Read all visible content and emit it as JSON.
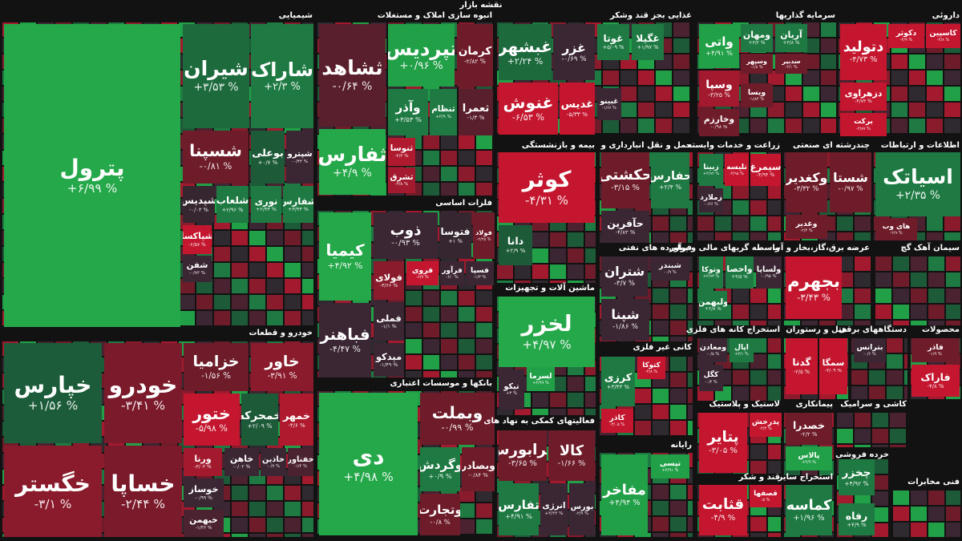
{
  "title": "نقشه بازار",
  "sectors": [
    {
      "name": "شیمیایی",
      "tiles": [
        {
          "name": "پترول",
          "change": "+۶/۹۹ %",
          "color": "#25a84a"
        },
        {
          "name": "شیران",
          "change": "+۳/۵۳ %",
          "color": "#1d6a3d"
        },
        {
          "name": "شاراک",
          "change": "+۲/۳ %",
          "color": "#1e7a42"
        },
        {
          "name": "شسپنا",
          "change": "-۰/۸۱ %",
          "color": "#6e1c2a"
        },
        {
          "name": "بوعلی",
          "change": "+۰/۷ %",
          "color": "#1d5a38"
        },
        {
          "name": "شپترو",
          "change": "-۰/۴۴ %",
          "color": "#3b2633"
        },
        {
          "name": "شپدیس",
          "change": "-۰/۰۳ %",
          "color": "#35262f"
        },
        {
          "name": "شلعاب",
          "change": "+۲/۹۶ %",
          "color": "#1e7a42"
        },
        {
          "name": "نوری",
          "change": "+۲/۳۳ %",
          "color": "#1e7a42"
        },
        {
          "name": "شفارس",
          "change": "+۳/۴۳ %",
          "color": "#1e7a42"
        },
        {
          "name": "شپاکسا",
          "change": "-۶/۵۷ %",
          "color": "#c4172f"
        },
        {
          "name": "شفن",
          "change": "-۰/۷۳ %",
          "color": "#3b2633"
        }
      ]
    },
    {
      "name": "خودرو و قطعات",
      "tiles": [
        {
          "name": "خپارس",
          "change": "+۱/۵۶ %",
          "color": "#1c5c3a"
        },
        {
          "name": "خگستر",
          "change": "-۳/۱ %",
          "color": "#8a1b2c"
        },
        {
          "name": "خودرو",
          "change": "-۳/۴۱ %",
          "color": "#7a1a2b"
        },
        {
          "name": "خساپا",
          "change": "-۲/۴۴ %",
          "color": "#7a1a2b"
        },
        {
          "name": "خزامیا",
          "change": "-۱/۵۶ %",
          "color": "#6e1c2a"
        },
        {
          "name": "خاور",
          "change": "-۳/۹۱ %",
          "color": "#8a1b2c"
        },
        {
          "name": "ختور",
          "change": "-۵/۹۸ %",
          "color": "#c4172f"
        },
        {
          "name": "خمحرکه",
          "change": "+۲/۰۹ %",
          "color": "#1d5a38"
        },
        {
          "name": "خمهر",
          "change": "-۴/۶ %",
          "color": "#b01a2f"
        },
        {
          "name": "ورنا",
          "change": "-۳/۰۳ %",
          "color": "#a31a2e"
        },
        {
          "name": "خاهن",
          "change": "-۰/۰۲ %",
          "color": "#3b2633"
        },
        {
          "name": "خاذین",
          "change": "-۰/۷ %",
          "color": "#3b2633"
        },
        {
          "name": "خفناور",
          "change": "-۱/۴ %",
          "color": "#4a2230"
        },
        {
          "name": "خوساز",
          "change": "-۰/۹۹ %",
          "color": "#3b2633"
        },
        {
          "name": "خبهمن",
          "change": "-۱/۳۶ %",
          "color": "#4a2230"
        }
      ]
    },
    {
      "name": "انبوه سازی املاک و مستغلات",
      "tiles": [
        {
          "name": "ثشاهد",
          "change": "-۰/۶۴ %",
          "color": "#5a1f2c"
        },
        {
          "name": "ثفارس",
          "change": "+۴/۹ %",
          "color": "#25a84a"
        },
        {
          "name": "تپردیس",
          "change": "+۰/۹۶ %",
          "color": "#22a048"
        },
        {
          "name": "کرمان",
          "change": "-۲/۸۲ %",
          "color": "#6e1c2a"
        },
        {
          "name": "وآذر",
          "change": "+۳/۵۳ %",
          "color": "#1e7a42"
        },
        {
          "name": "ثنظام",
          "change": "+۳/۹ %",
          "color": "#1e7a42"
        },
        {
          "name": "ثعمرا",
          "change": "-۱/۳ %",
          "color": "#5a1f2c"
        },
        {
          "name": "ثنوسا",
          "change": "-۴/۲ %",
          "color": "#b01a2f"
        },
        {
          "name": "ثشرق",
          "change": "-۳/۸ %",
          "color": "#a31a2e"
        }
      ]
    },
    {
      "name": "فلزات اساسی",
      "tiles": [
        {
          "name": "کیمیا",
          "change": "+۴/۹۲ %",
          "color": "#25a84a"
        },
        {
          "name": "ذوب",
          "change": "-۰/۹۳ %",
          "color": "#3b2633"
        },
        {
          "name": "فتوسا",
          "change": "+۱ %",
          "color": "#35262f"
        },
        {
          "name": "فولاد",
          "change": "-۲/۲۵ %",
          "color": "#6e1c2a"
        },
        {
          "name": "فولای",
          "change": "-۳/۶۶ %",
          "color": "#8a1b2c"
        },
        {
          "name": "فروی",
          "change": "-۶/۷ %",
          "color": "#c4172f"
        },
        {
          "name": "فرآور",
          "change": "-۶/۰ %",
          "color": "#3b2633"
        },
        {
          "name": "فسپا",
          "change": "-۱/۳ %",
          "color": "#3b2633"
        },
        {
          "name": "فباهنر",
          "change": "-۴/۴۷ %",
          "color": "#3b2633"
        },
        {
          "name": "فملی",
          "change": "-۱/۱ %",
          "color": "#3b2633"
        },
        {
          "name": "میدکو",
          "change": "-۱/۴۹ %",
          "color": "#3b2633"
        }
      ]
    },
    {
      "name": "بانکها و موسسات اعتباری",
      "tiles": [
        {
          "name": "دی",
          "change": "+۴/۹۸ %",
          "color": "#25a84a"
        },
        {
          "name": "وبملت",
          "change": "-۰/۹۹ %",
          "color": "#6e1c2a"
        },
        {
          "name": "وگردش",
          "change": "+۰/۹ %",
          "color": "#1e7a42"
        },
        {
          "name": "وبصادر",
          "change": "-۰/۸۴ %",
          "color": "#6e1c2a"
        },
        {
          "name": "وتجارت",
          "change": "-۰/۸ %",
          "color": "#6e1c2a"
        }
      ]
    },
    {
      "name": "غذایی بجز قند وشکر",
      "tiles": [
        {
          "name": "غبشهر",
          "change": "+۲/۲۴ %",
          "color": "#1d6a3d"
        },
        {
          "name": "غزر",
          "change": "-۰/۶۹ %",
          "color": "#3b2633"
        },
        {
          "name": "غوتا",
          "change": "+۵/۰۹ %",
          "color": "#1e7a42"
        },
        {
          "name": "غگیلا",
          "change": "+۱/۹۷ %",
          "color": "#1e7a42"
        },
        {
          "name": "غنوش",
          "change": "-۶/۵۳ %",
          "color": "#c4172f"
        },
        {
          "name": "غدیس",
          "change": "-۵/۳۳ %",
          "color": "#c4172f"
        },
        {
          "name": "غبینو",
          "change": "-۱/۶۶ %",
          "color": "#3b2633"
        }
      ]
    },
    {
      "name": "بیمه و بازنشستگی",
      "tiles": [
        {
          "name": "کوثر",
          "change": "-۴/۳۱ %",
          "color": "#c4172f"
        },
        {
          "name": "دانا",
          "change": "+۲/۹ %",
          "color": "#1d5a38"
        }
      ]
    },
    {
      "name": "ماشین آلات و تجهیزات",
      "tiles": [
        {
          "name": "لخزر",
          "change": "+۴/۹۷ %",
          "color": "#25a84a"
        },
        {
          "name": "لسرما",
          "change": "+۴/۹۹ %",
          "color": "#22a048"
        },
        {
          "name": "تیکو",
          "change": "+۳ %",
          "color": "#3b2633"
        }
      ]
    },
    {
      "name": "فعالیتهای کمکی به نهاد های",
      "tiles": [
        {
          "name": "فرابورس",
          "change": "-۳/۶۵ %",
          "color": "#6e1c2a"
        },
        {
          "name": "کالا",
          "change": "-۱/۶۶ %",
          "color": "#6e1c2a"
        },
        {
          "name": "تفارس",
          "change": "+۴/۹۱ %",
          "color": "#1e7a42"
        },
        {
          "name": "انرژی",
          "change": "+۳/۳۳ %",
          "color": "#3b2633"
        },
        {
          "name": "بورس",
          "change": "-۲/۹ %",
          "color": "#3b2633"
        }
      ]
    },
    {
      "name": "حمل و نقل انبارداری و",
      "tiles": [
        {
          "name": "حکشتی",
          "change": "-۳/۱۵ %",
          "color": "#6e1c2a"
        },
        {
          "name": "حفارس",
          "change": "+۲/۴ %",
          "color": "#1e7a42"
        },
        {
          "name": "حآفرین",
          "change": "-۴/۸۳ %",
          "color": "#3b2633"
        }
      ]
    },
    {
      "name": "فرآورده های نفتی",
      "tiles": [
        {
          "name": "شبندر",
          "change": "-۰/۹ %",
          "color": "#3b2633"
        },
        {
          "name": "شتران",
          "change": "-۳/۷ %",
          "color": "#3b2633"
        },
        {
          "name": "شپنا",
          "change": "-۱/۸۶ %",
          "color": "#3b2633"
        }
      ]
    },
    {
      "name": "کانی غیر فلزی",
      "tiles": [
        {
          "name": "کرزی",
          "change": "+۳/۴۳ %",
          "color": "#1e7a42"
        },
        {
          "name": "کتوکا",
          "change": "-۴/۸ %",
          "color": "#c4172f"
        },
        {
          "name": "کاذر",
          "change": "-۳/۰۵ %",
          "color": "#c4172f"
        }
      ]
    },
    {
      "name": "رایانه",
      "tiles": [
        {
          "name": "مفاخر",
          "change": "+۴/۹۴ %",
          "color": "#22a048"
        },
        {
          "name": "تپسی",
          "change": "+۴/۹۱ %",
          "color": "#22a048"
        }
      ]
    },
    {
      "name": "زراعت و خدمات وابسته",
      "tiles": [
        {
          "name": "زبینا",
          "change": "+۴/۹۲ %",
          "color": "#1e7a42"
        },
        {
          "name": "تلیسه",
          "change": "-۴/۹۸ %",
          "color": "#c4172f"
        },
        {
          "name": "سیمرغ",
          "change": "-۴/۹۴ %",
          "color": "#c4172f"
        },
        {
          "name": "زملارد",
          "change": "-۰/۶۶ %",
          "color": "#3b2633"
        }
      ]
    },
    {
      "name": "سرمایه گذاریها",
      "tiles": [
        {
          "name": "واتی",
          "change": "+۴/۹۱ %",
          "color": "#22a048"
        },
        {
          "name": "ومهان",
          "change": "+۳/۲ %",
          "color": "#1e7a42"
        },
        {
          "name": "آریان",
          "change": "+۳/۸ %",
          "color": "#1e7a42"
        },
        {
          "name": "وسپا",
          "change": "-۳/۲۵ %",
          "color": "#a31a2e"
        },
        {
          "name": "وسپهر",
          "change": "-۱/۸ %",
          "color": "#6e1c2a"
        },
        {
          "name": "سدبیر",
          "change": "-۲/۱ %",
          "color": "#6e1c2a"
        },
        {
          "name": "ویسا",
          "change": "-۱/۸۴ %",
          "color": "#6e1c2a"
        },
        {
          "name": "وخارزم",
          "change": "-۰/۹۸ %",
          "color": "#6e1c2a"
        }
      ]
    },
    {
      "name": "داروئی",
      "tiles": [
        {
          "name": "دتولید",
          "change": "-۴/۷۳ %",
          "color": "#c4172f"
        },
        {
          "name": "دکوثر",
          "change": "-۴/۹ %",
          "color": "#c4172f"
        },
        {
          "name": "کاسپین",
          "change": "-۴/۸ %",
          "color": "#c4172f"
        },
        {
          "name": "دزهراوی",
          "change": "-۴/۷۳ %",
          "color": "#c4172f"
        },
        {
          "name": "برکت",
          "change": "-۴/۸۷ %",
          "color": "#c4172f"
        }
      ]
    },
    {
      "name": "واسطه گریهای مالی و پولی",
      "tiles": [
        {
          "name": "وتوکا",
          "change": "+۲/۹۳ %",
          "color": "#1e7a42"
        },
        {
          "name": "واحصا",
          "change": "+۳/۵ %",
          "color": "#1e7a42"
        },
        {
          "name": "ولساپا",
          "change": "-۰/۹۵ %",
          "color": "#3b2633"
        },
        {
          "name": "ولبهمن",
          "change": "+۲/۸ %",
          "color": "#1e7a42"
        }
      ]
    },
    {
      "name": "استخراج کانه های فلزی",
      "tiles": [
        {
          "name": "ومعادن",
          "change": "-۰/۵ %",
          "color": "#3b2633"
        },
        {
          "name": "اپال",
          "change": "+۳/۱ %",
          "color": "#1e7a42"
        },
        {
          "name": "کگل",
          "change": "-۰/۴ %",
          "color": "#3b2633"
        }
      ]
    },
    {
      "name": "لاستیک و پلاستیک",
      "tiles": [
        {
          "name": "پتایر",
          "change": "-۳/۰۵ %",
          "color": "#c4172f"
        },
        {
          "name": "پدرخش",
          "change": "-۴/۴ %",
          "color": "#c4172f"
        }
      ]
    },
    {
      "name": "قند و شکر",
      "tiles": [
        {
          "name": "قثابت",
          "change": "-۴/۹ %",
          "color": "#c4172f"
        },
        {
          "name": "قصفها",
          "change": "-۵ %",
          "color": "#c4172f"
        }
      ]
    },
    {
      "name": "چندرشته ای صنعتی",
      "tiles": [
        {
          "name": "وکغدیر",
          "change": "-۳/۳۲ %",
          "color": "#6e1c2a"
        },
        {
          "name": "شستا",
          "change": "-۰/۹۷ %",
          "color": "#6e1c2a"
        },
        {
          "name": "وغدیر",
          "change": "-۲/۴ %",
          "color": "#6e1c2a"
        }
      ]
    },
    {
      "name": "اطلاعات و ارتباطات",
      "tiles": [
        {
          "name": "اسیاتک",
          "change": "+۲/۳۵ %",
          "color": "#1e7a42"
        },
        {
          "name": "های وب",
          "change": "-۲/۹ %",
          "color": "#6e1c2a"
        }
      ]
    },
    {
      "name": "عرضه برق،گاز،بخار و آب",
      "tiles": [
        {
          "name": "بجهرم",
          "change": "-۳/۴۳ %",
          "color": "#c4172f"
        }
      ]
    },
    {
      "name": "سیمان آهک گچ",
      "tiles": []
    },
    {
      "name": "هتل و رستوران",
      "tiles": [
        {
          "name": "گدنا",
          "change": "-۲/۵ %",
          "color": "#c4172f"
        },
        {
          "name": "سمگا",
          "change": "-۳/۰۹ %",
          "color": "#c4172f"
        }
      ]
    },
    {
      "name": "دستگاههای برقی",
      "tiles": [
        {
          "name": "بترانس",
          "change": "-۰/۶ %",
          "color": "#3b2633"
        }
      ]
    },
    {
      "name": "محصولات",
      "tiles": [
        {
          "name": "فاذر",
          "change": "-۱/۹ %",
          "color": "#6e1c2a"
        },
        {
          "name": "فاراک",
          "change": "-۴/۸ %",
          "color": "#c4172f"
        }
      ]
    },
    {
      "name": "پیمانکاری",
      "tiles": [
        {
          "name": "خصدرا",
          "change": "-۲/۲ %",
          "color": "#6e1c2a"
        },
        {
          "name": "پالاس",
          "change": "+۴/۹ %",
          "color": "#22a048"
        }
      ]
    },
    {
      "name": "کاشی و سرامیک",
      "tiles": []
    },
    {
      "name": "استخراج سایر",
      "tiles": [
        {
          "name": "کماسه",
          "change": "+۱/۹۶ %",
          "color": "#1e7a42"
        }
      ]
    },
    {
      "name": "خرده فروشی",
      "tiles": [
        {
          "name": "چخزر",
          "change": "+۴/۹۲ %",
          "color": "#1e7a42"
        },
        {
          "name": "رفاه",
          "change": "+۴/۹ %",
          "color": "#1e7a42"
        }
      ]
    },
    {
      "name": "فنی مخابرات",
      "tiles": []
    }
  ]
}
